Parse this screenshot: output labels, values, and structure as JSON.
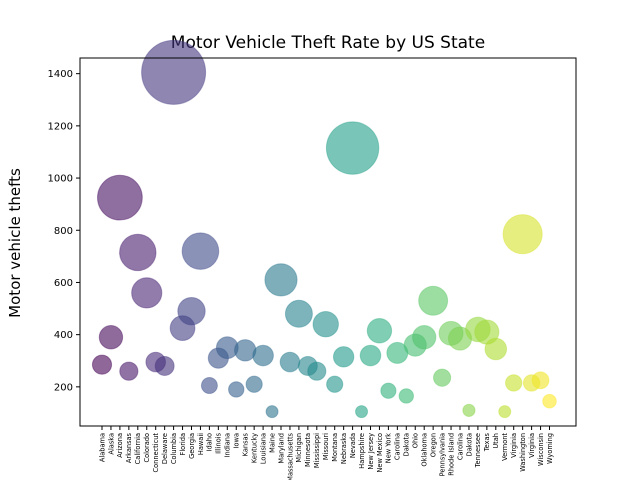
{
  "chart_data": {
    "type": "scatter",
    "title": "Motor Vehicle Theft Rate by US State",
    "xlabel": "",
    "ylabel": "Motor vehicle thefts",
    "ylim": [
      50,
      1460
    ],
    "yticks": [
      200,
      400,
      600,
      800,
      1000,
      1200,
      1400
    ],
    "grid": false,
    "legend": "none",
    "colormap": "viridis",
    "alpha": 0.6,
    "categories": [
      "Alabama",
      "Alaska",
      "Arizona",
      "Arkansas",
      "California",
      "Colorado",
      "Connecticut",
      "Delaware",
      "Columbia",
      "Florida",
      "Georgia",
      "Hawaii",
      "Idaho",
      "Illinois",
      "Indiana",
      "Iowa",
      "Kansas",
      "Kentucky",
      "Louisiana",
      "Maine",
      "Maryland",
      "Massachusetts",
      "Michigan",
      "Minnesota",
      "Mississippi",
      "Missouri",
      "Montana",
      "Nebraska",
      "Nevada",
      "New Hampshire",
      "New Jersey",
      "New Mexico",
      "New York",
      "North Carolina",
      "North Dakota",
      "Ohio",
      "Oklahoma",
      "Oregon",
      "Pennsylvania",
      "Rhode Island",
      "South Carolina",
      "South Dakota",
      "Tennessee",
      "Texas",
      "Utah",
      "Vermont",
      "Virginia",
      "Washington",
      "West Virginia",
      "Wisconsin",
      "Wyoming"
    ],
    "tick_labels": [
      "Alabama",
      "Alaska",
      "Arizona",
      "Arkansas",
      "California",
      "Colorado",
      "Connecticut",
      "Delaware",
      "Columbia",
      "Florida",
      "Georgia",
      "Hawaii",
      "Idaho",
      "Illinois",
      "Indiana",
      "Iowa",
      "Kansas",
      "Kentucky",
      "Louisiana",
      "Maine",
      "Maryland",
      "Massachusetts",
      "Michigan",
      "Minnesota",
      "Mississippi",
      "Missouri",
      "Montana",
      "Nebraska",
      "Nevada",
      "Hampshire",
      "New Jersey",
      "New Mexico",
      "New York",
      "Carolina",
      "Dakota",
      "Ohio",
      "Oklahoma",
      "Oregon",
      "Pennsylvania",
      "Rhode Island",
      "Carolina",
      "Dakota",
      "Tennessee",
      "Texas",
      "Utah",
      "Vermont",
      "Virginia",
      "Washington",
      "Virginia",
      "Wisconsin",
      "Wyoming"
    ],
    "values": [
      285,
      390,
      925,
      260,
      715,
      560,
      295,
      280,
      1405,
      425,
      490,
      720,
      205,
      310,
      350,
      190,
      340,
      210,
      320,
      105,
      610,
      295,
      480,
      280,
      260,
      440,
      210,
      315,
      1115,
      105,
      320,
      415,
      185,
      330,
      165,
      360,
      390,
      530,
      235,
      405,
      385,
      110,
      420,
      410,
      345,
      105,
      215,
      785,
      215,
      225,
      145
    ]
  }
}
